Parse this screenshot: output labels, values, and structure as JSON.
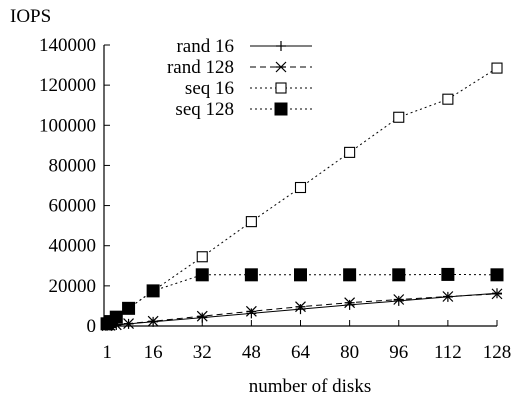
{
  "chart_data": {
    "type": "line",
    "title": "",
    "xlabel": "number of disks",
    "ylabel": "IOPS",
    "xlim": [
      0,
      128
    ],
    "ylim": [
      0,
      140000
    ],
    "x_ticks": [
      1,
      16,
      32,
      48,
      64,
      80,
      96,
      112,
      128
    ],
    "y_ticks": [
      0,
      20000,
      40000,
      60000,
      80000,
      100000,
      120000,
      140000
    ],
    "grid": false,
    "legend_position": "top-left",
    "series": [
      {
        "name": "rand 16",
        "style": "solid",
        "marker": "plus",
        "x": [
          1,
          2,
          4,
          8,
          16,
          32,
          48,
          64,
          80,
          96,
          112,
          128
        ],
        "y": [
          130,
          260,
          520,
          1040,
          2080,
          4200,
          6300,
          8400,
          10500,
          12500,
          14500,
          16300
        ]
      },
      {
        "name": "rand 128",
        "style": "dashed",
        "marker": "star",
        "x": [
          1,
          2,
          4,
          8,
          16,
          32,
          48,
          64,
          80,
          96,
          112,
          128
        ],
        "y": [
          150,
          300,
          600,
          1200,
          2400,
          4900,
          7300,
          9600,
          11600,
          13200,
          14700,
          16000
        ]
      },
      {
        "name": "seq 16",
        "style": "dotted",
        "marker": "open-square",
        "x": [
          1,
          2,
          4,
          8,
          16,
          32,
          48,
          64,
          80,
          96,
          112,
          128
        ],
        "y": [
          1100,
          2200,
          4400,
          8800,
          17500,
          34500,
          52000,
          69000,
          86500,
          104000,
          113000,
          128500
        ]
      },
      {
        "name": "seq 128",
        "style": "dotted",
        "marker": "filled-square",
        "x": [
          1,
          2,
          4,
          8,
          16,
          32,
          48,
          64,
          80,
          96,
          112,
          128
        ],
        "y": [
          1100,
          2200,
          4400,
          8800,
          17500,
          25500,
          25500,
          25500,
          25500,
          25500,
          25700,
          25500
        ]
      }
    ]
  }
}
